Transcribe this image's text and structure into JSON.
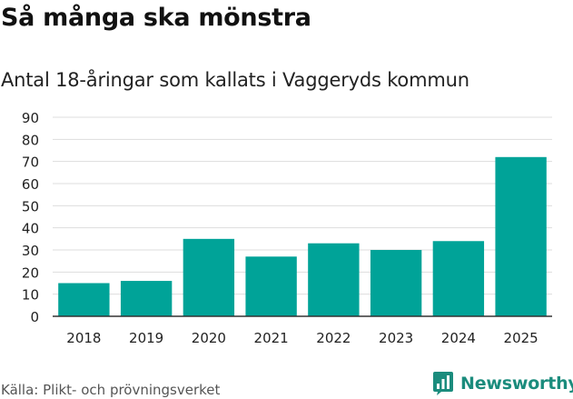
{
  "header": {
    "title": "Så många ska mönstra",
    "subtitle": "Antal 18-åringar som kallats i Vaggeryds kommun"
  },
  "footer": {
    "source": "Källa: Plikt- och prövningsverket",
    "brand": "Newsworthy"
  },
  "colors": {
    "bar": "#00a398",
    "grid": "#dddddd",
    "axis": "#333333",
    "brand": "#1b8c7d"
  },
  "chart_data": {
    "type": "bar",
    "title": "",
    "xlabel": "",
    "ylabel": "",
    "categories": [
      "2018",
      "2019",
      "2020",
      "2021",
      "2022",
      "2023",
      "2024",
      "2025"
    ],
    "values": [
      15,
      16,
      35,
      27,
      33,
      30,
      34,
      72
    ],
    "ylim": [
      0,
      90
    ],
    "yticks": [
      0,
      10,
      20,
      30,
      40,
      50,
      60,
      70,
      80,
      90
    ],
    "grid": true,
    "legend": "none"
  }
}
